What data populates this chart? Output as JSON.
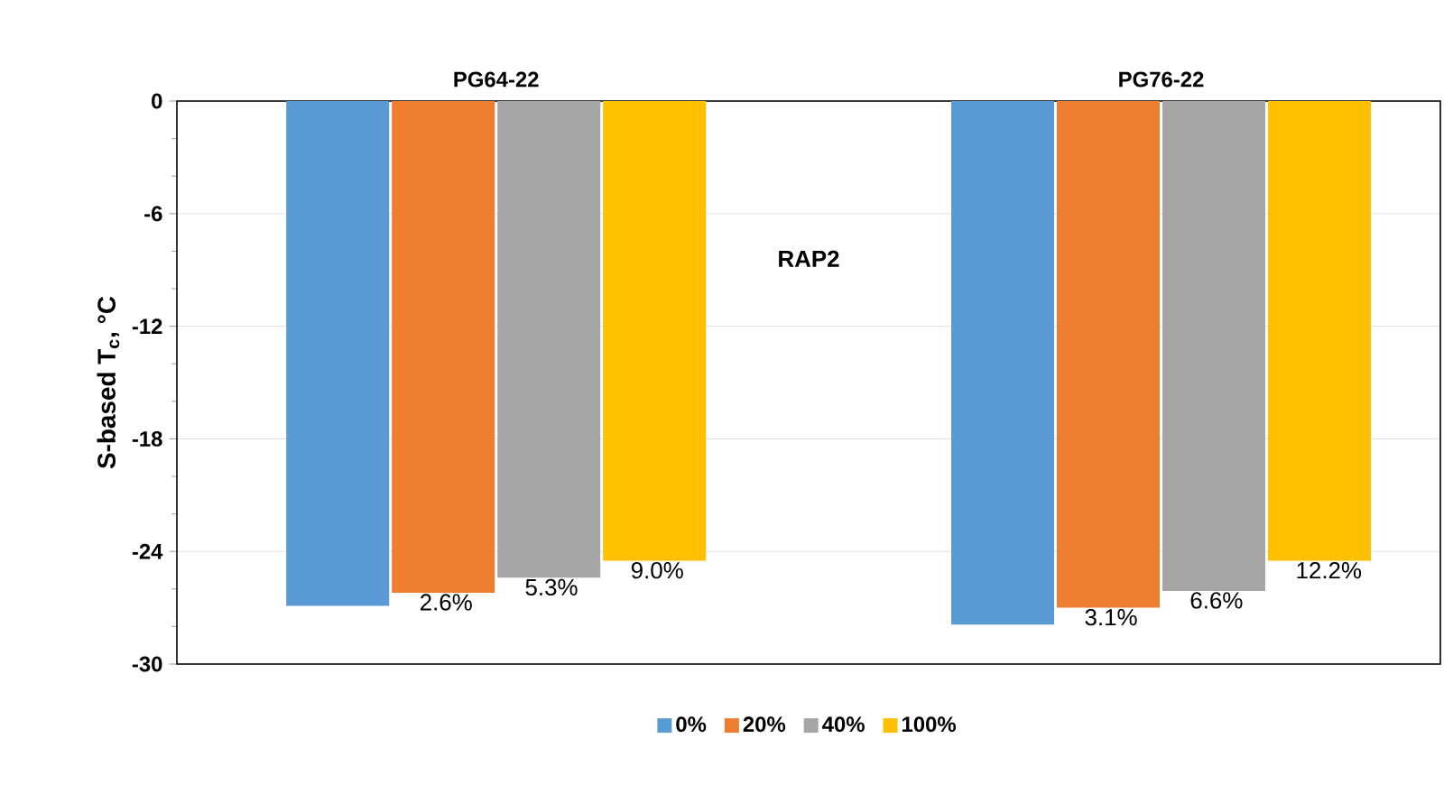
{
  "chart_data": {
    "type": "bar",
    "categories": [
      "PG64-22",
      "PG76-22"
    ],
    "ylabel": "S-based T$_{c}$, °C",
    "ylim": [
      -30,
      0
    ],
    "yticks": [
      -30,
      -24,
      -18,
      -12,
      -6,
      0
    ],
    "grid": "y",
    "legend": "bottom",
    "series": [
      {
        "name": "0%",
        "color": "#5b9bd5",
        "values": [
          -26.9,
          -27.9
        ]
      },
      {
        "name": "20%",
        "color": "#ed7d31",
        "values": [
          -26.2,
          -27.0
        ]
      },
      {
        "name": "40%",
        "color": "#a5a5a5",
        "values": [
          -25.4,
          -26.1
        ]
      },
      {
        "name": "100%",
        "color": "#ffc000",
        "values": [
          -24.5,
          -24.5
        ]
      }
    ],
    "annotations": [
      "RAP2",
      "2.6%",
      "5.3%",
      "9.0%",
      "3.1%",
      "6.6%",
      "12.2%"
    ]
  }
}
